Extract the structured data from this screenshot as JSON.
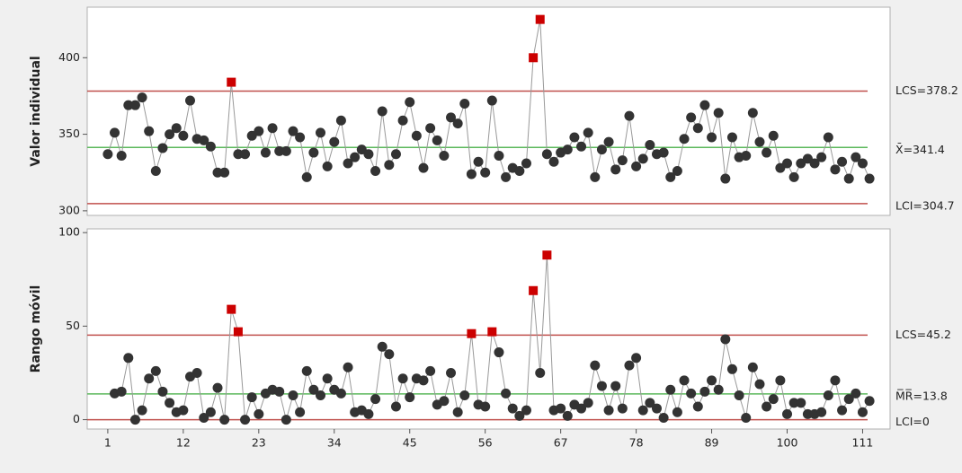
{
  "chart_data": [
    {
      "type": "line",
      "y_label": "Valor individual",
      "x": [
        1,
        2,
        3,
        4,
        5,
        6,
        7,
        8,
        9,
        10,
        11,
        12,
        13,
        14,
        15,
        16,
        17,
        18,
        19,
        20,
        21,
        22,
        23,
        24,
        25,
        26,
        27,
        28,
        29,
        30,
        31,
        32,
        33,
        34,
        35,
        36,
        37,
        38,
        39,
        40,
        41,
        42,
        43,
        44,
        45,
        46,
        47,
        48,
        49,
        50,
        51,
        52,
        53,
        54,
        55,
        56,
        57,
        58,
        59,
        60,
        61,
        62,
        63,
        64,
        65,
        66,
        67,
        68,
        69,
        70,
        71,
        72,
        73,
        74,
        75,
        76,
        77,
        78,
        79,
        80,
        81,
        82,
        83,
        84,
        85,
        86,
        87,
        88,
        89,
        90,
        91,
        92,
        93,
        94,
        95,
        96,
        97,
        98,
        99,
        100,
        101,
        102,
        103,
        104,
        105,
        106,
        107,
        108,
        109,
        110,
        111,
        112
      ],
      "values": [
        337,
        351,
        336,
        369,
        369,
        374,
        352,
        326,
        341,
        350,
        354,
        349,
        372,
        347,
        346,
        342,
        325,
        325,
        384,
        337,
        337,
        349,
        352,
        338,
        354,
        339,
        339,
        352,
        348,
        322,
        338,
        351,
        329,
        345,
        359,
        331,
        335,
        340,
        337,
        326,
        365,
        330,
        337,
        359,
        371,
        349,
        328,
        354,
        346,
        336,
        361,
        357,
        370,
        324,
        332,
        325,
        372,
        336,
        322,
        328,
        326,
        331,
        400,
        425,
        337,
        332,
        338,
        340,
        348,
        342,
        351,
        322,
        340,
        345,
        327,
        333,
        362,
        329,
        334,
        343,
        337,
        338,
        322,
        326,
        347,
        361,
        354,
        369,
        348,
        364,
        321,
        348,
        335,
        336,
        364,
        345,
        338,
        349,
        328,
        331,
        322,
        331,
        334,
        331,
        335,
        348,
        327,
        332,
        321,
        335,
        331,
        321
      ],
      "point_color": "#333333",
      "flag_color": "#cc0000",
      "line_color": "#999999",
      "flagged_x": [
        19,
        63,
        64
      ],
      "xlim": [
        -2,
        115
      ],
      "ylim": [
        297,
        433
      ],
      "yticks": [
        300,
        350,
        400
      ],
      "ref_lines": [
        {
          "value": 378.2,
          "label": "LCS=378.2",
          "color": "#c0504d"
        },
        {
          "value": 341.4,
          "label": "X̄=341.4",
          "color": "#5cb85c"
        },
        {
          "value": 304.7,
          "label": "LCI=304.7",
          "color": "#c0504d"
        }
      ]
    },
    {
      "type": "line",
      "y_label": "Rango móvil",
      "x": [
        2,
        3,
        4,
        5,
        6,
        7,
        8,
        9,
        10,
        11,
        12,
        13,
        14,
        15,
        16,
        17,
        18,
        19,
        20,
        21,
        22,
        23,
        24,
        25,
        26,
        27,
        28,
        29,
        30,
        31,
        32,
        33,
        34,
        35,
        36,
        37,
        38,
        39,
        40,
        41,
        42,
        43,
        44,
        45,
        46,
        47,
        48,
        49,
        50,
        51,
        52,
        53,
        54,
        55,
        56,
        57,
        58,
        59,
        60,
        61,
        62,
        63,
        64,
        65,
        66,
        67,
        68,
        69,
        70,
        71,
        72,
        73,
        74,
        75,
        76,
        77,
        78,
        79,
        80,
        81,
        82,
        83,
        84,
        85,
        86,
        87,
        88,
        89,
        90,
        91,
        92,
        93,
        94,
        95,
        96,
        97,
        98,
        99,
        100,
        101,
        102,
        103,
        104,
        105,
        106,
        107,
        108,
        109,
        110,
        111,
        112
      ],
      "values": [
        14,
        15,
        33,
        0,
        5,
        22,
        26,
        15,
        9,
        4,
        5,
        23,
        25,
        1,
        4,
        17,
        0,
        59,
        47,
        0,
        12,
        3,
        14,
        16,
        15,
        0,
        13,
        4,
        26,
        16,
        13,
        22,
        16,
        14,
        28,
        4,
        5,
        3,
        11,
        39,
        35,
        7,
        22,
        12,
        22,
        21,
        26,
        8,
        10,
        25,
        4,
        13,
        46,
        8,
        7,
        47,
        36,
        14,
        6,
        2,
        5,
        69,
        25,
        88,
        5,
        6,
        2,
        8,
        6,
        9,
        29,
        18,
        5,
        18,
        6,
        29,
        33,
        5,
        9,
        6,
        1,
        16,
        4,
        21,
        14,
        7,
        15,
        21,
        16,
        43,
        27,
        13,
        1,
        28,
        19,
        7,
        11,
        21,
        3,
        9,
        9,
        3,
        3,
        4,
        13,
        21,
        5,
        11,
        14,
        4,
        10
      ],
      "point_color": "#333333",
      "flag_color": "#cc0000",
      "line_color": "#999999",
      "flagged_x": [
        19,
        20,
        54,
        57,
        63,
        65
      ],
      "xlim": [
        -2,
        115
      ],
      "ylim": [
        -5,
        102
      ],
      "yticks": [
        0,
        50,
        100
      ],
      "xticks": [
        1,
        12,
        23,
        34,
        45,
        56,
        67,
        78,
        89,
        100,
        111
      ],
      "ref_lines": [
        {
          "value": 45.2,
          "label": "LCS=45.2",
          "color": "#c0504d"
        },
        {
          "value": 13.8,
          "label": "M̅R̅=13.8",
          "color": "#5cb85c"
        },
        {
          "value": 0,
          "label": "LCI=0",
          "color": "#c0504d"
        }
      ]
    }
  ]
}
